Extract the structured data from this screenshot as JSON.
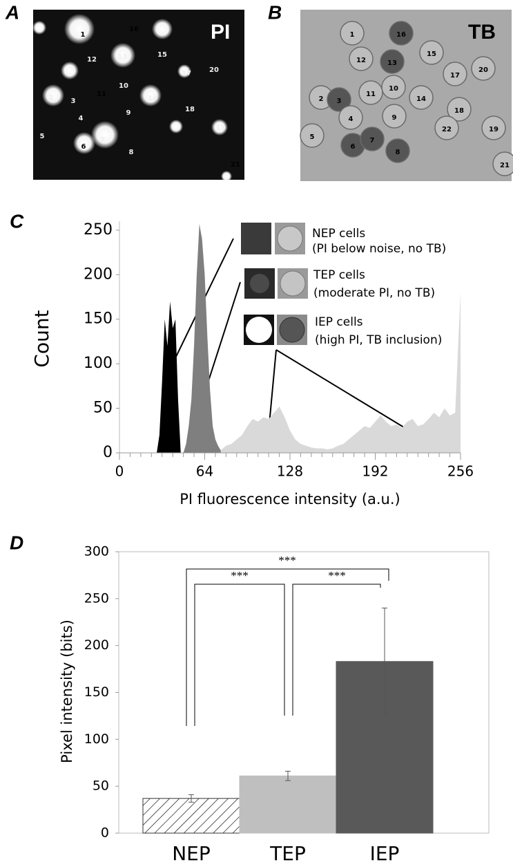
{
  "panel_a": {
    "letter": "A",
    "label": "PI",
    "cell_labels": [
      "1",
      "2",
      "3",
      "4",
      "5",
      "6",
      "7",
      "8",
      "9",
      "10",
      "11",
      "12",
      "13",
      "14",
      "15",
      "16",
      "17",
      "18",
      "19",
      "20",
      "21"
    ]
  },
  "panel_b": {
    "letter": "B",
    "label": "TB",
    "cell_labels": [
      "1",
      "2",
      "3",
      "4",
      "5",
      "6",
      "7",
      "8",
      "9",
      "10",
      "11",
      "12",
      "13",
      "14",
      "15",
      "16",
      "17",
      "18",
      "19",
      "20",
      "21",
      "22"
    ]
  },
  "chart_data": [
    {
      "type": "area",
      "panel_letter": "C",
      "xlabel": "PI fluorescence intensity (a.u.)",
      "ylabel": "Count",
      "xlim": [
        0,
        256
      ],
      "ylim": [
        0,
        260
      ],
      "xticks": [
        0,
        64,
        128,
        192,
        256
      ],
      "yticks": [
        0,
        50,
        100,
        150,
        200,
        250
      ],
      "minor_tick_step": 8,
      "annotations": [
        "NEP cells",
        "(PI below noise, no TB)",
        "TEP cells",
        "(moderate PI, no TB)",
        "IEP cells",
        "(high PI, TB inclusion)"
      ],
      "series": [
        {
          "color": "#000000",
          "x": [
            28,
            30,
            32,
            34,
            36,
            38,
            40,
            42,
            44,
            46
          ],
          "values": [
            0,
            20,
            80,
            150,
            120,
            170,
            140,
            150,
            60,
            0
          ]
        },
        {
          "color": "#7f7f7f",
          "x": [
            48,
            50,
            52,
            54,
            56,
            58,
            60,
            62,
            64,
            66,
            68,
            70,
            72,
            74,
            76,
            78
          ],
          "values": [
            0,
            10,
            30,
            60,
            120,
            200,
            257,
            240,
            200,
            130,
            70,
            30,
            15,
            8,
            3,
            0
          ]
        },
        {
          "color": "#d9d9d9",
          "x": [
            76,
            80,
            84,
            88,
            92,
            96,
            100,
            104,
            108,
            112,
            116,
            120,
            124,
            128,
            132,
            136,
            140,
            144,
            148,
            152,
            156,
            160,
            164,
            168,
            172,
            176,
            180,
            184,
            188,
            192,
            196,
            200,
            204,
            208,
            212,
            216,
            220,
            224,
            228,
            232,
            236,
            240,
            244,
            248,
            252,
            256
          ],
          "values": [
            3,
            8,
            10,
            15,
            20,
            30,
            38,
            35,
            40,
            38,
            45,
            52,
            40,
            25,
            15,
            10,
            8,
            6,
            5,
            5,
            4,
            5,
            8,
            10,
            15,
            20,
            25,
            30,
            28,
            35,
            42,
            35,
            30,
            32,
            28,
            35,
            38,
            30,
            32,
            38,
            45,
            40,
            50,
            42,
            45,
            180
          ]
        }
      ]
    },
    {
      "type": "bar",
      "panel_letter": "D",
      "ylabel": "Pixel intensity (bits)",
      "categories": [
        "NEP",
        "TEP",
        "IEP"
      ],
      "values": [
        37,
        61,
        183
      ],
      "errors": [
        4,
        5,
        57
      ],
      "colors": [
        "#ffffff",
        "#bfbfbf",
        "#595959"
      ],
      "hatch": [
        true,
        false,
        false
      ],
      "ylim": [
        0,
        300
      ],
      "yticks": [
        0,
        50,
        100,
        150,
        200,
        250,
        300
      ],
      "significance": [
        "***",
        "***",
        "***"
      ]
    }
  ]
}
